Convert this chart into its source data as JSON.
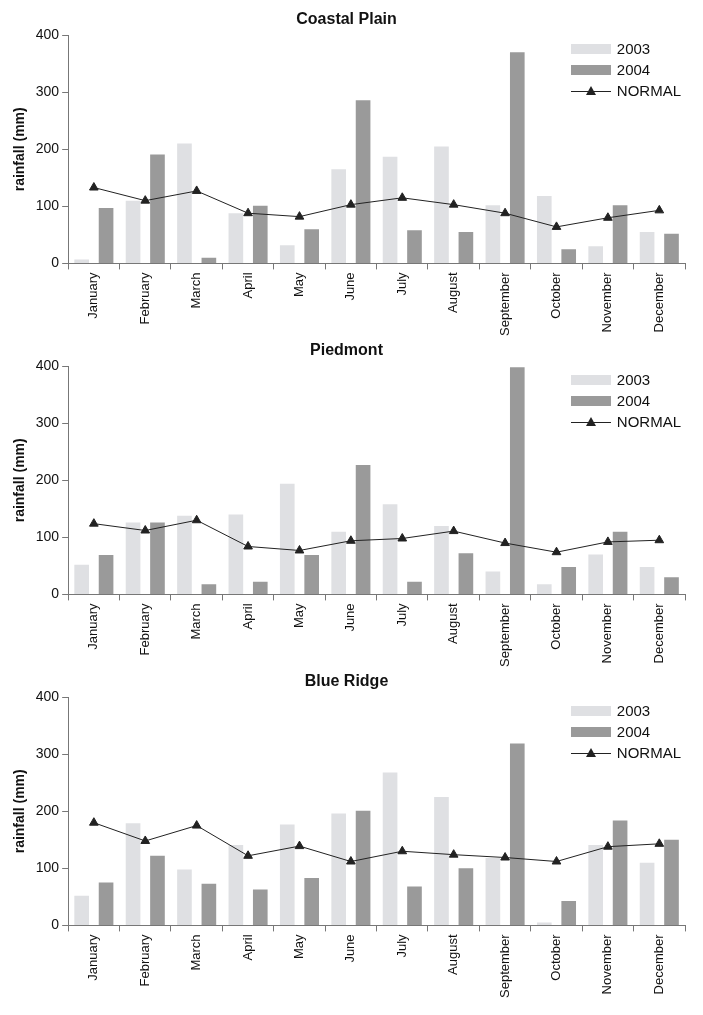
{
  "chart_data": [
    {
      "type": "bar",
      "title": "Coastal Plain",
      "ylabel": "rainfall (mm)",
      "categories": [
        "January",
        "February",
        "March",
        "April",
        "May",
        "June",
        "July",
        "August",
        "September",
        "October",
        "November",
        "December"
      ],
      "series": [
        {
          "name": "2003",
          "color": "#dfe0e3",
          "values": [
            7,
            110,
            210,
            88,
            32,
            165,
            187,
            205,
            102,
            118,
            30,
            55
          ]
        },
        {
          "name": "2004",
          "color": "#9a9a9a",
          "values": [
            97,
            191,
            10,
            101,
            60,
            286,
            58,
            55,
            370,
            25,
            102,
            52
          ]
        },
        {
          "name": "NORMAL",
          "type": "line",
          "marker": "triangle",
          "color": "#222222",
          "values": [
            133,
            110,
            127,
            88,
            82,
            103,
            115,
            103,
            88,
            64,
            80,
            93
          ]
        }
      ],
      "ylim": [
        0,
        400
      ],
      "yticks": [
        0,
        100,
        200,
        300,
        400
      ],
      "grid": false,
      "legend": "top right"
    },
    {
      "type": "bar",
      "title": "Piedmont",
      "ylabel": "rainfall (mm)",
      "categories": [
        "January",
        "February",
        "March",
        "April",
        "May",
        "June",
        "July",
        "August",
        "September",
        "October",
        "November",
        "December"
      ],
      "series": [
        {
          "name": "2003",
          "color": "#dfe0e3",
          "values": [
            52,
            126,
            138,
            140,
            194,
            110,
            158,
            120,
            40,
            18,
            70,
            48
          ]
        },
        {
          "name": "2004",
          "color": "#9a9a9a",
          "values": [
            69,
            126,
            18,
            22,
            69,
            227,
            22,
            72,
            398,
            48,
            110,
            30
          ]
        },
        {
          "name": "NORMAL",
          "type": "line",
          "marker": "triangle",
          "color": "#222222",
          "values": [
            124,
            112,
            130,
            84,
            77,
            94,
            98,
            111,
            90,
            74,
            92,
            95
          ]
        }
      ],
      "ylim": [
        0,
        400
      ],
      "yticks": [
        0,
        100,
        200,
        300,
        400
      ],
      "grid": false,
      "legend": "top right"
    },
    {
      "type": "bar",
      "title": "Blue Ridge",
      "ylabel": "rainfall (mm)",
      "categories": [
        "January",
        "February",
        "March",
        "April",
        "May",
        "June",
        "July",
        "August",
        "September",
        "October",
        "November",
        "December"
      ],
      "series": [
        {
          "name": "2003",
          "color": "#dfe0e3",
          "values": [
            52,
            179,
            98,
            141,
            177,
            196,
            268,
            225,
            118,
            5,
            141,
            110
          ]
        },
        {
          "name": "2004",
          "color": "#9a9a9a",
          "values": [
            75,
            122,
            73,
            63,
            83,
            201,
            68,
            100,
            319,
            43,
            184,
            150
          ]
        },
        {
          "name": "NORMAL",
          "type": "line",
          "marker": "triangle",
          "color": "#222222",
          "values": [
            180,
            148,
            175,
            122,
            139,
            112,
            130,
            124,
            119,
            112,
            138,
            143
          ]
        }
      ],
      "ylim": [
        0,
        400
      ],
      "yticks": [
        0,
        100,
        200,
        300,
        400
      ],
      "grid": false,
      "legend": "top right"
    }
  ]
}
